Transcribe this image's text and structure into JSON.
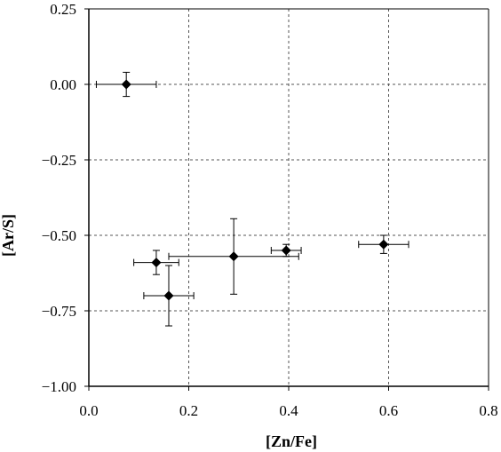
{
  "chart_data": {
    "type": "scatter",
    "title": "",
    "xlabel": "[Zn/Fe]",
    "ylabel": "[Ar/S]",
    "xlim": [
      0.0,
      0.8
    ],
    "ylim": [
      -1.0,
      0.25
    ],
    "x_ticks": [
      0.0,
      0.2,
      0.4,
      0.6,
      0.8
    ],
    "x_tick_labels": [
      "0.0",
      "0.2",
      "0.4",
      "0.6",
      "0.8"
    ],
    "y_ticks": [
      0.25,
      0.0,
      -0.25,
      -0.5,
      -0.75,
      -1.0
    ],
    "y_tick_labels": [
      "0.25",
      "0.00",
      "−0.25",
      "−0.50",
      "−0.75",
      "−1.00"
    ],
    "grid": "dashed",
    "legend": "none",
    "marker": "diamond",
    "colors": {
      "marker": "#000000",
      "grid": "#555555",
      "axis": "#000000"
    },
    "points": [
      {
        "x": 0.075,
        "y": 0.0,
        "xerr": [
          0.06,
          0.06
        ],
        "yerr": [
          0.04,
          0.04
        ]
      },
      {
        "x": 0.135,
        "y": -0.59,
        "xerr": [
          0.045,
          0.045
        ],
        "yerr": [
          0.04,
          0.04
        ]
      },
      {
        "x": 0.16,
        "y": -0.7,
        "xerr": [
          0.05,
          0.05
        ],
        "yerr": [
          0.1,
          0.1
        ]
      },
      {
        "x": 0.29,
        "y": -0.57,
        "xerr": [
          0.13,
          0.13
        ],
        "yerr": [
          0.125,
          0.125
        ]
      },
      {
        "x": 0.395,
        "y": -0.55,
        "xerr": [
          0.03,
          0.03
        ],
        "yerr": [
          0.02,
          0.02
        ]
      },
      {
        "x": 0.59,
        "y": -0.53,
        "xerr": [
          0.05,
          0.05
        ],
        "yerr": [
          0.03,
          0.03
        ]
      }
    ]
  }
}
